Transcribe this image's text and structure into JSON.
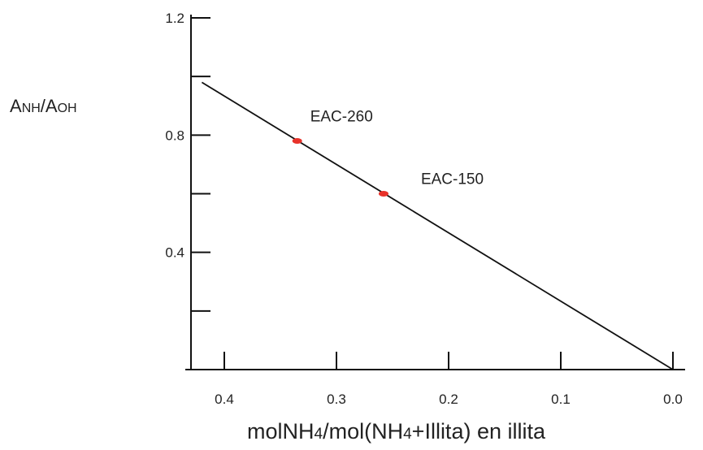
{
  "chart_data": {
    "type": "line",
    "ylabel_parts": [
      "A",
      "NH",
      "/A",
      "OH"
    ],
    "xlabel_parts": [
      "molNH",
      "4",
      "/mol(NH",
      "4",
      "+Illita) en illita"
    ],
    "x_axis": {
      "min": 0.0,
      "max": 0.45,
      "reversed": true,
      "tick_values": [
        0.4,
        0.3,
        0.2,
        0.1,
        0.0
      ],
      "tick_labels": [
        "0.4",
        "0.3",
        "0.2",
        "0.1",
        "0.0"
      ]
    },
    "y_axis": {
      "min": 0.0,
      "max": 1.2,
      "tick_values": [
        0.2,
        0.4,
        0.6,
        0.8,
        1.0,
        1.2
      ],
      "tick_labels": [
        "",
        "0.4",
        "",
        "0.8",
        "",
        "1.2"
      ]
    },
    "line": {
      "x": [
        0.42,
        0.0
      ],
      "y": [
        0.98,
        0.0
      ],
      "color": "#111111"
    },
    "points": [
      {
        "label": "EAC-260",
        "x": 0.335,
        "y": 0.78,
        "color": "#e8322a"
      },
      {
        "label": "EAC-150",
        "x": 0.258,
        "y": 0.6,
        "color": "#e8322a"
      }
    ],
    "grid": false,
    "legend": "none"
  }
}
